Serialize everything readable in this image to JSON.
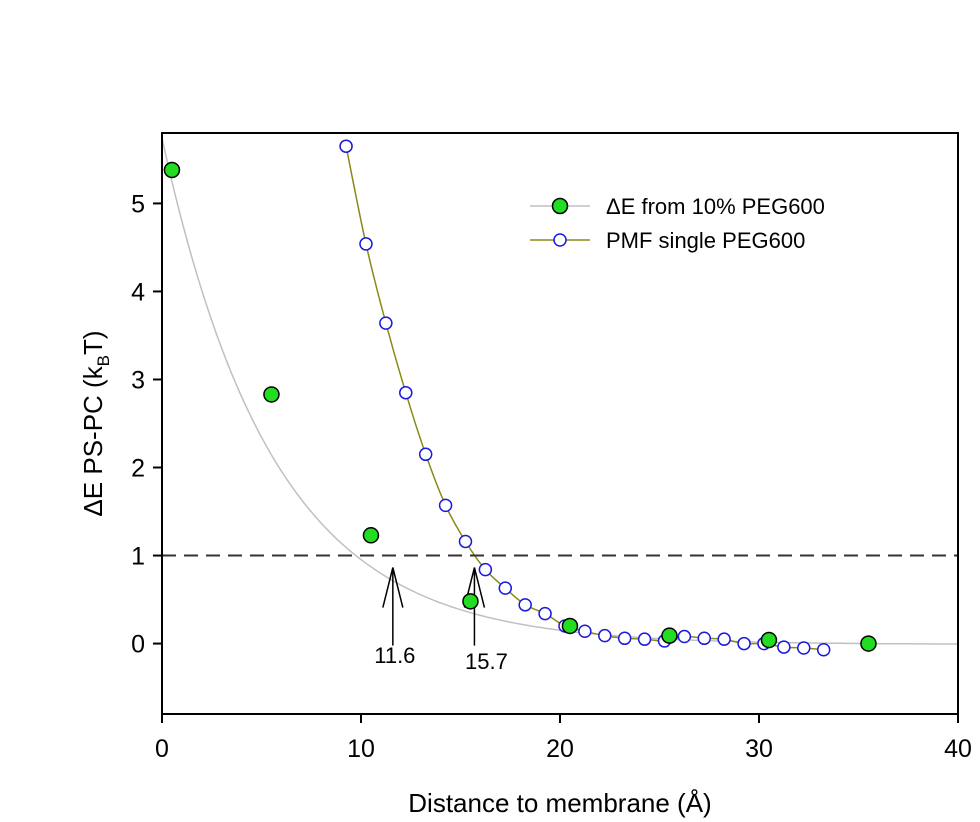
{
  "chart_data": {
    "type": "scatter",
    "xlabel": "Distance to membrane (Å)",
    "ylabel_main": "ΔE PS-PC  (k",
    "ylabel_sub": "B",
    "ylabel_end": "T)",
    "xlim": [
      0,
      40
    ],
    "ylim": [
      -0.8,
      5.8
    ],
    "xticks": [
      0,
      10,
      20,
      30,
      40
    ],
    "yticks": [
      0,
      1,
      2,
      3,
      4,
      5
    ],
    "grid": false,
    "legend_position": "top-right",
    "reference_line": {
      "y": 1,
      "style": "dashed"
    },
    "series": [
      {
        "name": "ΔE from 10% PEG600",
        "marker": "filled-circle",
        "marker_color": "#22dd22",
        "line_color": "#c0c0c0",
        "x": [
          0.5,
          5.5,
          10.5,
          15.5,
          20.5,
          25.5,
          30.5,
          35.5
        ],
        "y": [
          5.38,
          2.83,
          1.23,
          0.48,
          0.2,
          0.09,
          0.04,
          0.0
        ]
      },
      {
        "name": "PMF single PEG600",
        "marker": "open-circle",
        "marker_color": "#1a1adf",
        "line_color": "#8a8a18",
        "x": [
          9.25,
          10.25,
          11.25,
          12.25,
          13.25,
          14.25,
          15.25,
          16.25,
          17.25,
          18.25,
          19.25,
          20.25,
          21.25,
          22.25,
          23.25,
          24.25,
          25.25,
          26.25,
          27.25,
          28.25,
          29.25,
          30.25,
          31.25,
          32.25,
          33.25
        ],
        "y": [
          5.65,
          4.54,
          3.64,
          2.85,
          2.15,
          1.57,
          1.16,
          0.84,
          0.63,
          0.44,
          0.34,
          0.2,
          0.14,
          0.09,
          0.06,
          0.05,
          0.03,
          0.08,
          0.06,
          0.05,
          0.0,
          0.0,
          -0.04,
          -0.05,
          -0.07
        ]
      }
    ],
    "annotations": [
      {
        "label": "11.6",
        "x": 11.6
      },
      {
        "label": "15.7",
        "x": 15.7
      }
    ]
  }
}
